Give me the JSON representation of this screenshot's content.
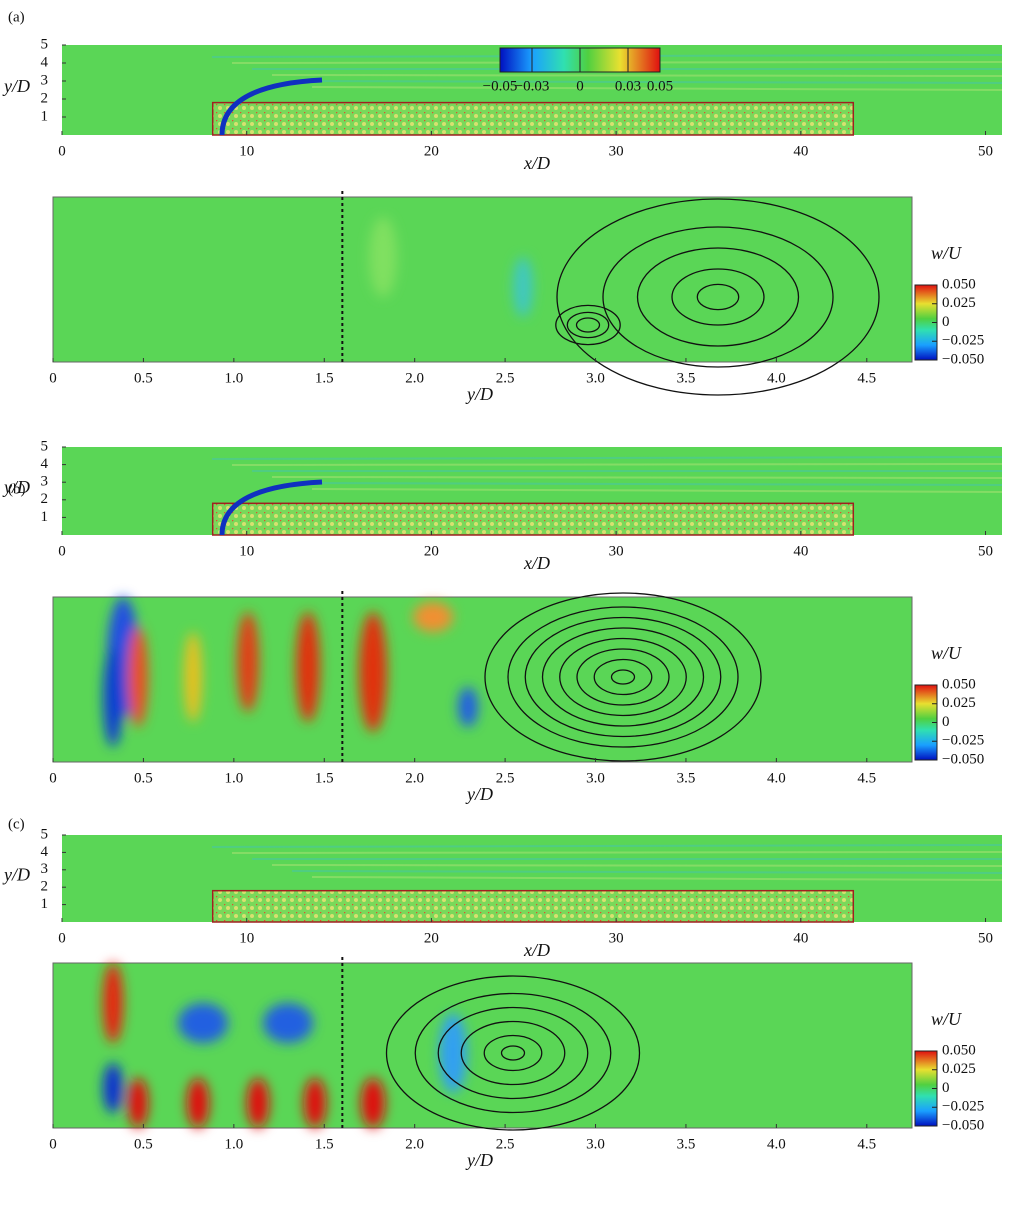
{
  "panels": [
    {
      "label": "(a)",
      "top": {
        "xlabel": "x/D",
        "ylabel": "y/D",
        "xlim": [
          0,
          51
        ],
        "ylim": [
          0,
          5
        ],
        "xticks": [
          0,
          10,
          20,
          30,
          40,
          50
        ],
        "yticks": [
          1,
          2,
          3,
          4,
          5
        ],
        "colorbar": {
          "lim": [
            -0.05,
            0.05
          ],
          "ticks": [
            {
              "value": -0.05,
              "label": "−0.05"
            },
            {
              "value": -0.03,
              "label": "−0.03"
            },
            0,
            0.03,
            0.05
          ]
        }
      },
      "bottom": {
        "xlabel": "y/D",
        "xlim": [
          0,
          4.75
        ],
        "dashed_line": 1.6,
        "xticks": [
          0,
          0.5,
          {
            "value": 1,
            "label": "1.0"
          },
          1.5,
          {
            "value": 2,
            "label": "2.0"
          },
          2.5,
          {
            "value": 3,
            "label": "3.0"
          },
          3.5,
          {
            "value": 4,
            "label": "4.0"
          },
          4.5
        ],
        "colorbar": {
          "title": "w/U",
          "lim": [
            -0.05,
            0.05
          ],
          "ticks": [
            {
              "value": 0.05,
              "label": "0.050"
            },
            {
              "value": 0.025,
              "label": "0.025"
            },
            0,
            {
              "value": -0.025,
              "label": "−0.025"
            },
            {
              "value": -0.05,
              "label": "−0.050"
            }
          ]
        }
      }
    },
    {
      "label": "(b)",
      "top": {
        "xlabel": "x/D",
        "ylabel": "y/D",
        "xlim": [
          0,
          51
        ],
        "ylim": [
          0,
          5
        ],
        "xticks": [
          0,
          10,
          20,
          30,
          40,
          50
        ],
        "yticks": [
          1,
          2,
          3,
          4,
          5
        ]
      },
      "bottom": {
        "xlabel": "y/D",
        "xlim": [
          0,
          4.75
        ],
        "dashed_line": 1.6,
        "xticks": [
          0,
          0.5,
          {
            "value": 1,
            "label": "1.0"
          },
          1.5,
          {
            "value": 2,
            "label": "2.0"
          },
          2.5,
          {
            "value": 3,
            "label": "3.0"
          },
          3.5,
          {
            "value": 4,
            "label": "4.0"
          },
          4.5
        ],
        "colorbar": {
          "title": "w/U",
          "lim": [
            -0.05,
            0.05
          ],
          "ticks": [
            {
              "value": 0.05,
              "label": "0.050"
            },
            {
              "value": 0.025,
              "label": "0.025"
            },
            0,
            {
              "value": -0.025,
              "label": "−0.025"
            },
            {
              "value": -0.05,
              "label": "−0.050"
            }
          ]
        }
      }
    },
    {
      "label": "(c)",
      "top": {
        "xlabel": "x/D",
        "ylabel": "y/D",
        "xlim": [
          0,
          51
        ],
        "ylim": [
          0,
          5
        ],
        "xticks": [
          0,
          10,
          20,
          30,
          40,
          50
        ],
        "yticks": [
          1,
          2,
          3,
          4,
          5
        ]
      },
      "bottom": {
        "xlabel": "y/D",
        "xlim": [
          0,
          4.75
        ],
        "dashed_line": 1.6,
        "xticks": [
          0,
          0.5,
          {
            "value": 1,
            "label": "1.0"
          },
          1.5,
          {
            "value": 2,
            "label": "2.0"
          },
          2.5,
          {
            "value": 3,
            "label": "3.0"
          },
          3.5,
          {
            "value": 4,
            "label": "4.0"
          },
          4.5
        ],
        "colorbar": {
          "title": "w/U",
          "lim": [
            -0.05,
            0.05
          ],
          "ticks": [
            {
              "value": 0.05,
              "label": "0.050"
            },
            {
              "value": 0.025,
              "label": "0.025"
            },
            0,
            {
              "value": -0.025,
              "label": "−0.025"
            },
            {
              "value": -0.05,
              "label": "−0.050"
            }
          ]
        }
      }
    }
  ]
}
